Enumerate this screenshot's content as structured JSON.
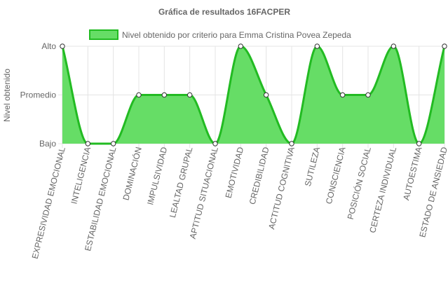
{
  "chart_data": {
    "type": "area",
    "title": "Gráfica de resultados 16FACPER",
    "ylabel": "Nivel obtenido",
    "xlabel": "",
    "y_ticks": [
      "Bajo",
      "Promedio",
      "Alto"
    ],
    "ylim": [
      0,
      2
    ],
    "legend_position": "top",
    "grid": true,
    "categories": [
      "EXPRESIVIDAD EMOCIONAL",
      "INTELIGENCIA",
      "ESTABILIDAD EMOCIONAL",
      "DOMINACIÓN",
      "IMPULSIVIDAD",
      "LEALTAD GRUPAL",
      "APTITUD SITUACIONAL",
      "EMOTIVIDAD",
      "CREDIBILIDAD",
      "ACTITUD COGNITIVA",
      "SUTILEZA",
      "CONSCIENCIA",
      "POSICIÓN SOCIAL",
      "CERTEZA INDIVIDUAL",
      "AUTOESTIMA",
      "ESTADO DE ANSIEDAD"
    ],
    "series": [
      {
        "name": "Nivel obtenido por criterio para Emma Cristina Povea Zepeda",
        "values": [
          2,
          0,
          0,
          1,
          1,
          1,
          0,
          2,
          1,
          0,
          2,
          1,
          1,
          2,
          0,
          2
        ],
        "fill_color": "#66dd66",
        "line_color": "#22bb22"
      }
    ]
  }
}
